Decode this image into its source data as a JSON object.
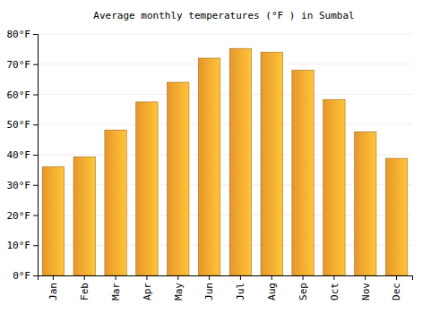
{
  "chart_data": {
    "type": "bar",
    "title": "Average monthly temperatures (°F ) in Sumbal",
    "categories": [
      "Jan",
      "Feb",
      "Mar",
      "Apr",
      "May",
      "Jun",
      "Jul",
      "Aug",
      "Sep",
      "Oct",
      "Nov",
      "Dec"
    ],
    "values": [
      36,
      39.3,
      48.2,
      57.5,
      64,
      72,
      75.2,
      74,
      68,
      58.3,
      47.6,
      38.8
    ],
    "color": "#fba52f",
    "ylim": [
      0,
      80
    ],
    "yticks": [
      {
        "value": 0,
        "label": "0°F"
      },
      {
        "value": 10,
        "label": "10°F"
      },
      {
        "value": 20,
        "label": "20°F"
      },
      {
        "value": 30,
        "label": "30°F"
      },
      {
        "value": 40,
        "label": "40°F"
      },
      {
        "value": 50,
        "label": "50°F"
      },
      {
        "value": 60,
        "label": "60°F"
      },
      {
        "value": 70,
        "label": "70°F"
      },
      {
        "value": 80,
        "label": "80°F"
      }
    ],
    "grid": true
  }
}
